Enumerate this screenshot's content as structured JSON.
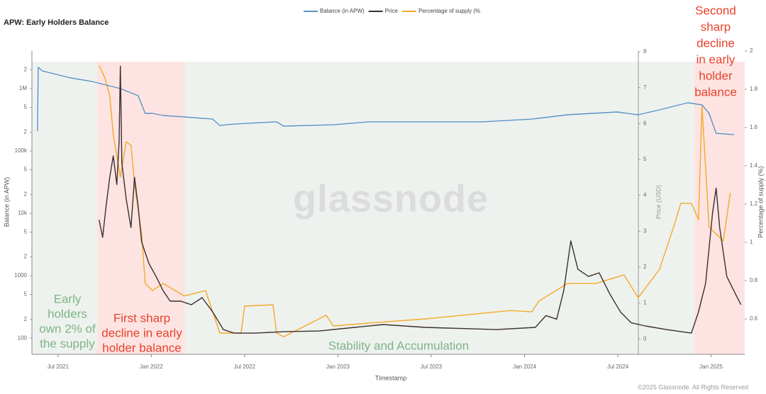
{
  "chart_data": {
    "type": "line",
    "title": "APW: Early Holders Balance",
    "watermark": "glassnode",
    "footer": "©2025 Glassnode. All Rights Reserved",
    "xlabel": "Timestamp",
    "ylabel": "Balance (in APW)",
    "y2label": "Price (USD)",
    "y3label": "Percentage of supply (%)",
    "legend_labels": [
      "Balance (in APW)",
      "Price",
      "Percentage of supply (%"
    ],
    "xlim": [
      2021.36,
      2025.18
    ],
    "xticks": [
      {
        "value": 2021.5,
        "label": "Jul 2021"
      },
      {
        "value": 2022.0,
        "label": "Jan 2022"
      },
      {
        "value": 2022.5,
        "label": "Jul 2022"
      },
      {
        "value": 2023.0,
        "label": "Jan 2023"
      },
      {
        "value": 2023.5,
        "label": "Jul 2023"
      },
      {
        "value": 2024.0,
        "label": "Jan 2024"
      },
      {
        "value": 2024.5,
        "label": "Jul 2024"
      },
      {
        "value": 2025.0,
        "label": "Jan 2025"
      }
    ],
    "log_y": true,
    "ylim": [
      55,
      4000000
    ],
    "yticks": [
      {
        "value": 2000000,
        "label": "2"
      },
      {
        "value": 1000000,
        "label": "1M"
      },
      {
        "value": 500000,
        "label": "5"
      },
      {
        "value": 200000,
        "label": "2"
      },
      {
        "value": 100000,
        "label": "100k"
      },
      {
        "value": 50000,
        "label": "5"
      },
      {
        "value": 20000,
        "label": "2"
      },
      {
        "value": 10000,
        "label": "10k"
      },
      {
        "value": 5000,
        "label": "5"
      },
      {
        "value": 2000,
        "label": "2"
      },
      1000,
      {
        "value": 500,
        "label": "5"
      },
      {
        "value": 200,
        "label": "2"
      },
      100
    ],
    "y2lim": [
      -0.43,
      8.02
    ],
    "y2ticks": [
      0,
      1,
      2,
      3,
      4,
      5,
      6,
      7,
      8
    ],
    "y3lim": [
      0.415,
      2
    ],
    "y3ticks": [
      0.6,
      0.8,
      1,
      1.2,
      1.4,
      1.6,
      1.8,
      2
    ],
    "regions": [
      {
        "start": 2021.36,
        "end": 2024.91,
        "color": "#eef2ee"
      },
      {
        "start": 2021.71,
        "end": 2022.18,
        "color": "#fde4e2"
      },
      {
        "start": 2024.91,
        "end": 2025.18,
        "color": "#fde4e2"
      }
    ],
    "annotations": [
      {
        "lines": [
          "Early",
          "holders",
          "own 2% of",
          "the supply"
        ],
        "color": "#7db488"
      },
      {
        "lines": [
          "First sharp",
          "decline in early",
          "holder balance"
        ],
        "color": "#e8412b"
      },
      {
        "lines": [
          "Stability and Accumulation"
        ],
        "color": "#7db488"
      },
      {
        "lines": [
          "Second",
          "sharp",
          "decline",
          "in early",
          "holder",
          "balance"
        ],
        "color": "#e8412b"
      }
    ],
    "series": [
      {
        "name": "Balance (in APW)",
        "color": "#5b93c7",
        "axis": "y",
        "x": [
          2021.39,
          2021.394,
          2021.416,
          2021.568,
          2021.682,
          2021.834,
          2021.929,
          2021.967,
          2022.006,
          2022.063,
          2022.177,
          2022.329,
          2022.367,
          2022.443,
          2022.671,
          2022.709,
          2022.975,
          2023.165,
          2023.469,
          2023.773,
          2024.039,
          2024.229,
          2024.495,
          2024.609,
          2024.723,
          2024.875,
          2024.951,
          2024.989,
          2025.027,
          2025.122
        ],
        "values": [
          208000,
          2190000,
          1920000,
          1480000,
          1300000,
          1000000,
          770000,
          400000,
          400000,
          370000,
          351000,
          324000,
          256000,
          270000,
          293000,
          250000,
          263000,
          293000,
          293000,
          293000,
          324000,
          380000,
          422000,
          380000,
          456000,
          593000,
          548000,
          400000,
          192000,
          182000
        ]
      },
      {
        "name": "Price",
        "color": "#3a2f2f",
        "axis": "y2",
        "x": [
          2021.72,
          2021.739,
          2021.758,
          2021.777,
          2021.796,
          2021.815,
          2021.827,
          2021.834,
          2021.842,
          2021.865,
          2021.891,
          2021.91,
          2021.929,
          2021.948,
          2021.987,
          2022.025,
          2022.063,
          2022.101,
          2022.158,
          2022.215,
          2022.272,
          2022.329,
          2022.386,
          2022.443,
          2022.557,
          2022.709,
          2022.899,
          2023.089,
          2023.241,
          2023.469,
          2023.849,
          2024.058,
          2024.115,
          2024.172,
          2024.21,
          2024.248,
          2024.286,
          2024.343,
          2024.4,
          2024.457,
          2024.514,
          2024.571,
          2024.647,
          2024.761,
          2024.894,
          2024.932,
          2024.97,
          2025.008,
          2025.027,
          2025.046,
          2025.084,
          2025.122,
          2025.16
        ],
        "values": [
          3.32,
          2.83,
          3.72,
          4.5,
          5.1,
          4.3,
          5.5,
          7.6,
          4.9,
          3.9,
          3.1,
          4.5,
          3.7,
          2.7,
          2.1,
          1.74,
          1.34,
          1.05,
          1.05,
          0.95,
          1.15,
          0.75,
          0.26,
          0.16,
          0.16,
          0.2,
          0.22,
          0.32,
          0.4,
          0.32,
          0.26,
          0.32,
          0.65,
          0.55,
          1.34,
          2.73,
          1.94,
          1.74,
          1.84,
          1.25,
          0.75,
          0.45,
          0.36,
          0.26,
          0.16,
          0.75,
          1.54,
          3.52,
          4.2,
          3.1,
          1.74,
          1.34,
          0.95
        ]
      },
      {
        "name": "Percentage of supply (%",
        "color": "#f4a927",
        "axis": "y3",
        "x": [
          2021.72,
          2021.751,
          2021.777,
          2021.796,
          2021.834,
          2021.865,
          2021.891,
          2021.91,
          2021.948,
          2021.967,
          2022.006,
          2022.063,
          2022.177,
          2022.291,
          2022.367,
          2022.481,
          2022.5,
          2022.652,
          2022.671,
          2022.709,
          2022.937,
          2022.975,
          2023.203,
          2023.469,
          2023.925,
          2024.039,
          2024.077,
          2024.229,
          2024.381,
          2024.533,
          2024.609,
          2024.723,
          2024.799,
          2024.837,
          2024.894,
          2024.932,
          2024.951,
          2024.989,
          2025.065,
          2025.103
        ],
        "values": [
          1.926,
          1.859,
          1.767,
          1.563,
          1.341,
          1.526,
          1.507,
          1.304,
          1.044,
          0.785,
          0.748,
          0.785,
          0.72,
          0.748,
          0.526,
          0.526,
          0.667,
          0.674,
          0.526,
          0.507,
          0.619,
          0.563,
          0.581,
          0.6,
          0.644,
          0.637,
          0.693,
          0.785,
          0.785,
          0.83,
          0.711,
          0.859,
          1.081,
          1.204,
          1.204,
          1.119,
          1.711,
          1.081,
          1.007,
          1.259
        ]
      }
    ]
  }
}
